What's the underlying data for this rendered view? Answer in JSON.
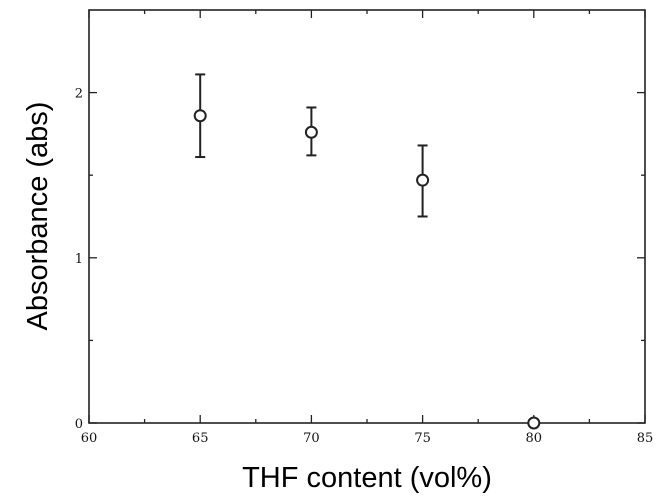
{
  "chart_data": {
    "type": "scatter",
    "xlabel": "THF content (vol%)",
    "ylabel": "Absorbance (abs)",
    "xlim": [
      60,
      85
    ],
    "ylim": [
      0,
      2.5
    ],
    "x_ticks": [
      60,
      65,
      70,
      75,
      80,
      85
    ],
    "y_ticks": [
      0,
      1,
      2
    ],
    "x_tick_labels": [
      "60",
      "65",
      "70",
      "75",
      "80",
      "85"
    ],
    "y_tick_labels": [
      "0",
      "1",
      "2"
    ],
    "grid": false,
    "legend": "none",
    "points": [
      {
        "x": 65,
        "y": 1.86,
        "err_low": 1.61,
        "err_high": 2.11
      },
      {
        "x": 70,
        "y": 1.76,
        "err_low": 1.62,
        "err_high": 1.91
      },
      {
        "x": 75,
        "y": 1.47,
        "err_low": 1.25,
        "err_high": 1.68
      },
      {
        "x": 80,
        "y": 0.0
      }
    ],
    "colors": {
      "marker_fill": "#ffffff",
      "marker_stroke": "#222222"
    }
  }
}
